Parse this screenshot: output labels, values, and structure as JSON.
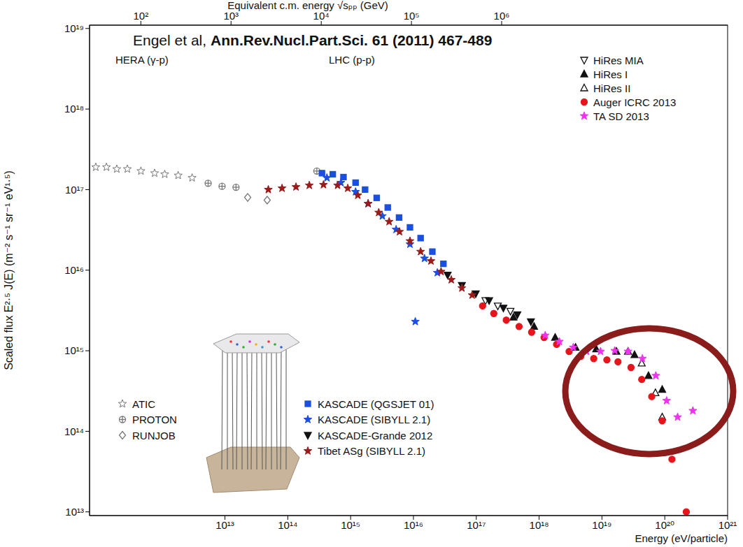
{
  "chart_data": {
    "type": "scatter",
    "log": true,
    "grid": false,
    "xlabel": "Energy (eV/particle)",
    "ylabel": "Scaled flux   E²·⁵ J(E)   (m⁻² s⁻¹ sr⁻¹ eV¹·⁵)",
    "x2label": "Equivalent c.m. energy  √sₚₚ  (GeV)",
    "annotations": [
      "Engel et al,",
      "Ann.Rev.Nucl.Part.Sci. 61 (2011) 467-489",
      "HERA (γ-p)",
      "LHC (p-p)"
    ],
    "xlim": [
      70000000000.0,
      1e+21
    ],
    "xticks": [
      {
        "value": 10000000000000.0,
        "label": "10¹³"
      },
      {
        "value": 100000000000000.0,
        "label": "10¹⁴"
      },
      {
        "value": 1000000000000000.0,
        "label": "10¹⁵"
      },
      {
        "value": 1e+16,
        "label": "10¹⁶"
      },
      {
        "value": 1e+17,
        "label": "10¹⁷"
      },
      {
        "value": 1e+18,
        "label": "10¹⁸"
      },
      {
        "value": 1e+19,
        "label": "10¹⁹"
      },
      {
        "value": 1e+20,
        "label": "10²⁰"
      },
      {
        "value": 1e+21,
        "label": "10²¹"
      }
    ],
    "ylim": [
      9000000000000.0,
      1.1e+19
    ],
    "yticks": [
      {
        "value": 10000000000000.0,
        "label": "10¹³"
      },
      {
        "value": 100000000000000.0,
        "label": "10¹⁴"
      },
      {
        "value": 1000000000000000.0,
        "label": "10¹⁵"
      },
      {
        "value": 1e+16,
        "label": "10¹⁶"
      },
      {
        "value": 1e+17,
        "label": "10¹⁷"
      },
      {
        "value": 1e+18,
        "label": "10¹⁸"
      },
      {
        "value": 1e+19,
        "label": "10¹⁹"
      }
    ],
    "x2lim": [
      27,
      320000000.0
    ],
    "x2ticks": [
      {
        "value": 100,
        "label": "10²"
      },
      {
        "value": 1000,
        "label": "10³"
      },
      {
        "value": 10000,
        "label": "10⁴"
      },
      {
        "value": 100000,
        "label": "10⁵"
      },
      {
        "value": 1000000,
        "label": "10⁶"
      }
    ],
    "series": [
      {
        "name": "ATIC",
        "color": "#777777",
        "marker": "star_open",
        "legend": "lower left",
        "x": [
          88000000000.0,
          130000000000.0,
          190000000000.0,
          280000000000.0,
          460000000000.0,
          760000000000.0,
          1100000000000.0,
          1800000000000.0,
          3000000000000.0
        ],
        "values": [
          1.9e+17,
          1.9e+17,
          1.8e+17,
          1.8e+17,
          1.7e+17,
          1.6e+17,
          1.55e+17,
          1.5e+17,
          1.4e+17
        ]
      },
      {
        "name": "PROTON",
        "color": "#777777",
        "marker": "circle_cross",
        "legend": "lower left",
        "x": [
          5400000000000.0,
          9000000000000.0,
          15000000000000.0,
          290000000000000.0
        ],
        "values": [
          1.2e+17,
          1.1e+17,
          1.07e+17,
          1.7e+17
        ]
      },
      {
        "name": "RUNJOB",
        "color": "#777777",
        "marker": "diamond_open",
        "legend": "lower left",
        "x": [
          23000000000000.0,
          47000000000000.0
        ],
        "values": [
          8e+16,
          7.4e+16
        ]
      },
      {
        "name": "KASCADE (QGSJET 01)",
        "color": "#1a4fe0",
        "marker": "square",
        "legend": "lower left",
        "x": [
          350000000000000.0,
          520000000000000.0,
          770000000000000.0,
          1200000000000000.0,
          1700000000000000.0,
          2600000000000000.0,
          3900000000000000.0,
          5900000000000000.0,
          8800000000000000.0,
          1.3e+16,
          2e+16,
          3e+16
        ],
        "values": [
          1.6e+17,
          1.55e+17,
          1.43e+17,
          1.22e+17,
          1e+17,
          7.9e+16,
          6e+16,
          4.5e+16,
          3.4e+16,
          2.5e+16,
          1.7e+16,
          1.2e+16
        ]
      },
      {
        "name": "KASCADE (SIBYLL 2.1)",
        "color": "#1a4fe0",
        "marker": "star",
        "legend": "lower left",
        "x": [
          420000000000000.0,
          700000000000000.0,
          1200000000000000.0,
          1900000000000000.0,
          3200000000000000.0,
          5300000000000000.0,
          8800000000000000.0,
          1.07e+16,
          1.5e+16,
          2.4e+16
        ],
        "values": [
          1.4e+17,
          1.22e+17,
          9.4e+16,
          6.7e+16,
          4.7e+16,
          3.2e+16,
          2.1e+16,
          2300000000000000.0,
          1.4e+16,
          9300000000000000.0
        ]
      },
      {
        "name": "KASCADE-Grande 2012",
        "color": "#111111",
        "marker": "triangle_down",
        "legend": "lower left",
        "x": [
          3.5e+16,
          5.9e+16,
          9.8e+16,
          1.6e+17,
          2.7e+17,
          4.5e+17,
          7.4e+17
        ],
        "values": [
          8700000000000000.0,
          6500000000000000.0,
          5100000000000000.0,
          4200000000000000.0,
          3400000000000000.0,
          2800000000000000.0,
          2300000000000000.0
        ]
      },
      {
        "name": "Tibet ASg (SIBYLL 2.1)",
        "color": "#9b1b1b",
        "marker": "star",
        "legend": "lower left",
        "x": [
          49000000000000.0,
          81000000000000.0,
          135000000000000.0,
          220000000000000.0,
          370000000000000.0,
          620000000000000.0,
          900000000000000.0,
          1300000000000000.0,
          1900000000000000.0,
          2800000000000000.0,
          4100000000000000.0,
          6000000000000000.0,
          8800000000000000.0,
          1.3e+16,
          1.9e+16,
          2.75e+16,
          4e+16,
          5.9e+16,
          8.6e+16
        ],
        "values": [
          1e+17,
          1.04e+17,
          1.08e+17,
          1.13e+17,
          1.15e+17,
          1.13e+17,
          1.04e+17,
          8.5e+16,
          6.7e+16,
          5.2e+16,
          4e+16,
          3e+16,
          2.3e+16,
          1.7e+16,
          1.3e+16,
          9600000000000000.0,
          7600000000000000.0,
          6000000000000000.0,
          4900000000000000.0
        ]
      },
      {
        "name": "HiRes MIA",
        "color": "#111111",
        "marker": "triangle_down_open",
        "legend": "upper right",
        "x": [
          1.4e+17,
          2.2e+17,
          3.5e+17
        ],
        "values": [
          4200000000000000.0,
          3600000000000000.0,
          3100000000000000.0
        ]
      },
      {
        "name": "HiRes I",
        "color": "#111111",
        "marker": "triangle",
        "legend": "upper right",
        "x": [
          3.9e+17,
          8.3e+17,
          1.8e+18,
          3.8e+18,
          8.1e+18,
          1.7e+19,
          3.3e+19,
          5.5e+19,
          9.1e+19
        ],
        "values": [
          2600000000000000.0,
          2000000000000000.0,
          1460000000000000.0,
          1100000000000000.0,
          1050000000000000.0,
          980000000000000.0,
          890000000000000.0,
          490000000000000.0,
          330000000000000.0
        ]
      },
      {
        "name": "HiRes II",
        "color": "#111111",
        "marker": "triangle_open",
        "legend": "upper right",
        "x": [
          2.6e+19,
          4.3e+19,
          7.1e+19,
          9.1e+19
        ],
        "values": [
          980000000000000.0,
          700000000000000.0,
          300000000000000.0,
          150000000000000.0
        ]
      },
      {
        "name": "Auger ICRC 2013",
        "color": "#e8141c",
        "marker": "circle",
        "legend": "upper right",
        "x": [
          1.26e+17,
          1.9e+17,
          3e+17,
          4.8e+17,
          7.6e+17,
          1.2e+18,
          1.9e+18,
          3e+18,
          4.6e+18,
          7.4e+18,
          1.2e+19,
          1.8e+19,
          2.9e+19,
          4.3e+19,
          6.2e+19,
          9.1e+19,
          1.3e+20,
          2.2e+20
        ],
        "values": [
          3600000000000000.0,
          2900000000000000.0,
          2400000000000000.0,
          2000000000000000.0,
          1700000000000000.0,
          1460000000000000.0,
          1200000000000000.0,
          980000000000000.0,
          850000000000000.0,
          800000000000000.0,
          770000000000000.0,
          730000000000000.0,
          620000000000000.0,
          440000000000000.0,
          270000000000000.0,
          135000000000000.0,
          45000000000000.0,
          10000000000000.0
        ]
      },
      {
        "name": "TA SD 2013",
        "color": "#ee33ee",
        "marker": "star",
        "legend": "upper right",
        "x": [
          1.25e+18,
          2.1e+18,
          3.5e+18,
          5.7e+18,
          9.5e+18,
          1.6e+19,
          2.6e+19,
          4.4e+19,
          7.2e+19,
          1.07e+20,
          1.6e+20,
          2.8e+20
        ],
        "values": [
          1550000000000000.0,
          1300000000000000.0,
          1100000000000000.0,
          980000000000000.0,
          980000000000000.0,
          1000000000000000.0,
          980000000000000.0,
          800000000000000.0,
          490000000000000.0,
          240000000000000.0,
          150000000000000.0,
          180000000000000.0
        ]
      }
    ]
  }
}
